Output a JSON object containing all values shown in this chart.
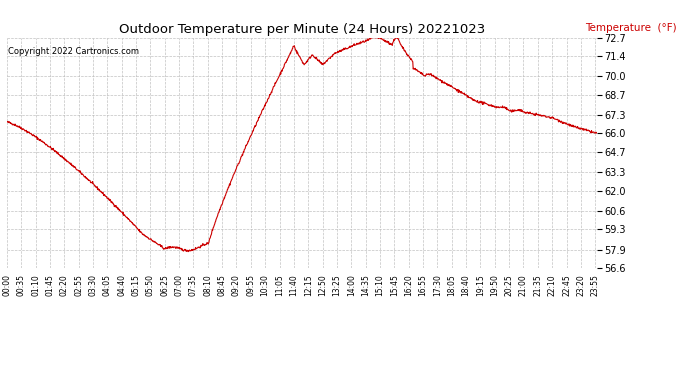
{
  "title": "Outdoor Temperature per Minute (24 Hours) 20221023",
  "copyright_text": "Copyright 2022 Cartronics.com",
  "legend_label": "Temperature  (°F)",
  "y_ticks": [
    56.6,
    57.9,
    59.3,
    60.6,
    62.0,
    63.3,
    64.7,
    66.0,
    67.3,
    68.7,
    70.0,
    71.4,
    72.7
  ],
  "y_min": 56.6,
  "y_max": 72.7,
  "line_color": "#cc0000",
  "bg_color": "#ffffff",
  "title_color": "#000000",
  "copyright_color": "#000000",
  "legend_color": "#cc0000",
  "grid_color": "#bbbbbb",
  "x_tick_interval_minutes": 35,
  "total_minutes": 1440
}
